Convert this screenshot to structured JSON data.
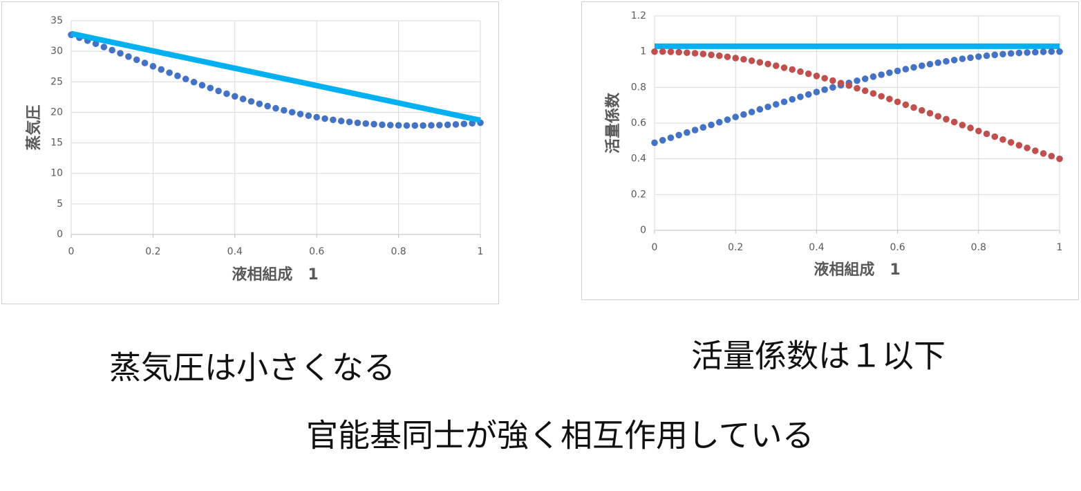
{
  "chart_data": [
    {
      "type": "scatter",
      "y_label": "蒸気圧",
      "x_label": "液相組成　1",
      "xlim": [
        0,
        1
      ],
      "xticks": [
        0,
        0.2,
        0.4,
        0.6,
        0.8,
        1
      ],
      "ylim": [
        0,
        35
      ],
      "yticks": [
        0,
        5,
        10,
        15,
        20,
        25,
        30,
        35
      ],
      "grid": true,
      "x": [
        0,
        0.02,
        0.04,
        0.06,
        0.08,
        0.1,
        0.12,
        0.14,
        0.16,
        0.18,
        0.2,
        0.22,
        0.24,
        0.26,
        0.28,
        0.3,
        0.32,
        0.34,
        0.36,
        0.38,
        0.4,
        0.42,
        0.44,
        0.46,
        0.48,
        0.5,
        0.52,
        0.54,
        0.56,
        0.58,
        0.6,
        0.62,
        0.64,
        0.66,
        0.68,
        0.7,
        0.72,
        0.74,
        0.76,
        0.78,
        0.8,
        0.82,
        0.84,
        0.86,
        0.88,
        0.9,
        0.92,
        0.94,
        0.96,
        0.98,
        1
      ],
      "series": [
        {
          "style": "markers",
          "color": "#4472c4",
          "values": [
            32.7,
            32.23,
            31.74,
            31.23,
            30.7,
            30.19,
            29.67,
            29.13,
            28.61,
            28.08,
            27.54,
            27.02,
            26.49,
            25.97,
            25.46,
            24.95,
            24.44,
            23.98,
            23.5,
            23.05,
            22.62,
            22.19,
            21.79,
            21.39,
            21.02,
            20.66,
            20.33,
            20.02,
            19.72,
            19.45,
            19.2,
            18.97,
            18.77,
            18.58,
            18.43,
            18.28,
            18.16,
            18.06,
            17.97,
            17.91,
            17.87,
            17.84,
            17.84,
            17.84,
            17.87,
            17.91,
            17.96,
            18.02,
            18.11,
            18.21,
            18.3
          ]
        },
        {
          "style": "line",
          "color": "#00b0f0",
          "x": [
            0,
            1
          ],
          "values": [
            32.9,
            18.7
          ]
        }
      ]
    },
    {
      "type": "scatter",
      "y_label": "活量係数",
      "x_label": "液相組成　1",
      "xlim": [
        0,
        1
      ],
      "xticks": [
        0,
        0.2,
        0.4,
        0.6,
        0.8,
        1
      ],
      "ylim": [
        0,
        1.2
      ],
      "yticks": [
        0,
        0.2,
        0.4,
        0.6,
        0.8,
        1,
        1.2
      ],
      "grid": true,
      "x": [
        0,
        0.02,
        0.04,
        0.06,
        0.08,
        0.1,
        0.12,
        0.14,
        0.16,
        0.18,
        0.2,
        0.22,
        0.24,
        0.26,
        0.28,
        0.3,
        0.32,
        0.34,
        0.36,
        0.38,
        0.4,
        0.42,
        0.44,
        0.46,
        0.48,
        0.5,
        0.52,
        0.54,
        0.56,
        0.58,
        0.6,
        0.62,
        0.64,
        0.66,
        0.68,
        0.7,
        0.72,
        0.74,
        0.76,
        0.78,
        0.8,
        0.82,
        0.84,
        0.86,
        0.88,
        0.9,
        0.92,
        0.94,
        0.96,
        0.98,
        1
      ],
      "series": [
        {
          "style": "line",
          "color": "#00b0f0",
          "x": [
            0,
            1
          ],
          "values": [
            1.03,
            1.03
          ]
        },
        {
          "style": "markers",
          "color": "#4472c4",
          "values": [
            0.49,
            0.504,
            0.518,
            0.533,
            0.547,
            0.561,
            0.576,
            0.59,
            0.605,
            0.619,
            0.634,
            0.648,
            0.662,
            0.677,
            0.691,
            0.705,
            0.719,
            0.733,
            0.747,
            0.76,
            0.774,
            0.787,
            0.8,
            0.812,
            0.825,
            0.837,
            0.848,
            0.86,
            0.871,
            0.882,
            0.892,
            0.902,
            0.912,
            0.921,
            0.93,
            0.938,
            0.946,
            0.953,
            0.96,
            0.966,
            0.972,
            0.977,
            0.982,
            0.986,
            0.99,
            0.993,
            0.995,
            0.997,
            0.999,
            1,
            1
          ]
        },
        {
          "style": "markers",
          "color": "#c0504d",
          "values": [
            1,
            1,
            0.999,
            0.997,
            0.994,
            0.991,
            0.987,
            0.982,
            0.977,
            0.971,
            0.964,
            0.957,
            0.949,
            0.94,
            0.931,
            0.921,
            0.91,
            0.9,
            0.888,
            0.876,
            0.864,
            0.851,
            0.838,
            0.824,
            0.81,
            0.795,
            0.781,
            0.766,
            0.75,
            0.735,
            0.719,
            0.703,
            0.687,
            0.671,
            0.655,
            0.638,
            0.622,
            0.606,
            0.589,
            0.573,
            0.556,
            0.54,
            0.524,
            0.508,
            0.492,
            0.476,
            0.461,
            0.445,
            0.43,
            0.415,
            0.4
          ]
        }
      ]
    }
  ],
  "captions": [
    "蒸気圧は小さくなる",
    "活量係数は１以下",
    "官能基同士が強く相互作用している"
  ]
}
